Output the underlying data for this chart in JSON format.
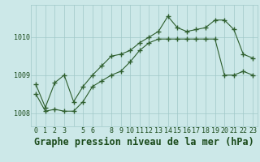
{
  "title": "Graphe pression niveau de la mer (hPa)",
  "hours": [
    0,
    1,
    2,
    3,
    4,
    5,
    6,
    7,
    8,
    9,
    10,
    11,
    12,
    13,
    14,
    15,
    16,
    17,
    18,
    19,
    20,
    21,
    22,
    23
  ],
  "x_labels": [
    "0",
    "1",
    "2",
    "3",
    "",
    "5",
    "6",
    "",
    "8",
    "9",
    "10",
    "11",
    "12",
    "13",
    "14",
    "15",
    "16",
    "17",
    "18",
    "19",
    "20",
    "21",
    "22",
    "23"
  ],
  "series_high": [
    1008.75,
    1008.15,
    1008.8,
    1009.0,
    1008.3,
    1008.7,
    1009.0,
    1009.25,
    1009.5,
    1009.55,
    1009.65,
    1009.85,
    1010.0,
    1010.15,
    1010.55,
    1010.25,
    1010.15,
    1010.2,
    1010.25,
    1010.45,
    1010.45,
    1010.2,
    1009.55,
    1009.45
  ],
  "series_low": [
    1008.5,
    1008.05,
    1008.1,
    1008.05,
    1008.05,
    1008.3,
    1008.7,
    1008.85,
    1009.0,
    1009.1,
    1009.35,
    1009.65,
    1009.85,
    1009.95,
    1009.95,
    1009.95,
    1009.95,
    1009.95,
    1009.95,
    1009.95,
    1009.0,
    1009.0,
    1009.1,
    1009.0
  ],
  "line_color": "#2d5e2d",
  "marker_color": "#2d5e2d",
  "bg_color": "#cce8e8",
  "grid_color": "#a0c8c8",
  "text_color": "#1a4a1a",
  "ylim": [
    1007.65,
    1010.85
  ],
  "yticks": [
    1008,
    1009,
    1010
  ],
  "title_fontsize": 8.5,
  "tick_fontsize": 6.0,
  "figwidth": 3.2,
  "figheight": 2.0,
  "dpi": 100
}
